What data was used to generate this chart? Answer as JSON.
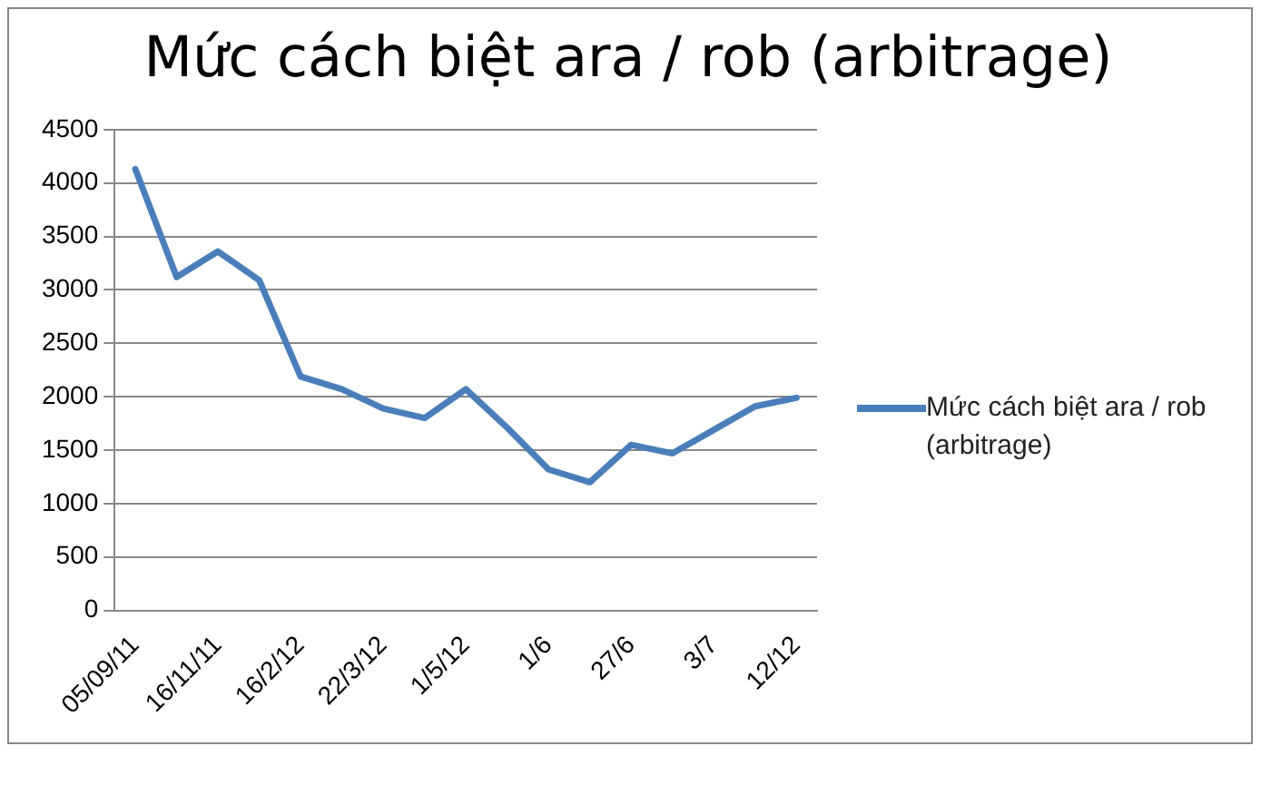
{
  "chart_data": {
    "type": "line",
    "title": "Mức cách biệt ara / rob (arbitrage)",
    "categories": [
      "05/09/11",
      null,
      "16/11/11",
      null,
      "16/2/12",
      null,
      "22/3/12",
      null,
      "1/5/12",
      null,
      "1/6",
      null,
      "27/6",
      null,
      "3/7",
      null,
      "12/12"
    ],
    "series": [
      {
        "name": "Mức cách biệt ara / rob (arbitrage)",
        "color": "#4a7ebb",
        "values": [
          4130,
          3120,
          3360,
          3090,
          2190,
          2070,
          1890,
          1800,
          2070,
          1710,
          1320,
          1200,
          1550,
          1470,
          1690,
          1910,
          1990
        ]
      }
    ],
    "ylim": [
      0,
      4500
    ],
    "yticks": [
      0,
      500,
      1000,
      1500,
      2000,
      2500,
      3000,
      3500,
      4000,
      4500
    ],
    "grid": "y",
    "legend": "right",
    "marker": "none",
    "line_style": "solid"
  }
}
